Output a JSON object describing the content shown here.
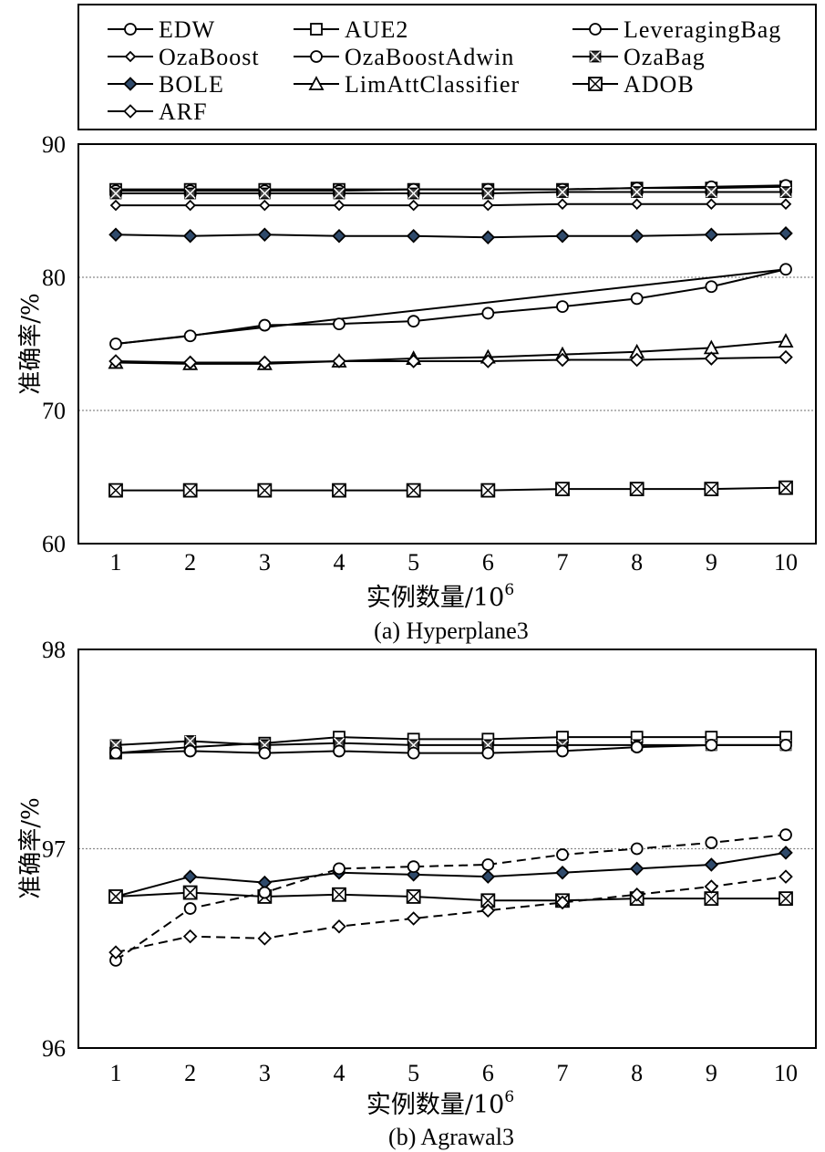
{
  "legend": {
    "entries": [
      {
        "name": "EDW",
        "marker": "circle",
        "fill": "#ffffff"
      },
      {
        "name": "AUE2",
        "marker": "square",
        "fill": "#ffffff"
      },
      {
        "name": "LeveragingBag",
        "marker": "circle",
        "fill": "#ffffff"
      },
      {
        "name": "OzaBoost",
        "marker": "diamond-small",
        "fill": "#ffffff"
      },
      {
        "name": "OzaBoostAdwin",
        "marker": "circle",
        "fill": "#ffffff"
      },
      {
        "name": "OzaBag",
        "marker": "square-x-filled",
        "fill": "#444444"
      },
      {
        "name": "BOLE",
        "marker": "diamond",
        "fill": "#2f4a6b"
      },
      {
        "name": "LimAttClassifier",
        "marker": "triangle",
        "fill": "#ffffff"
      },
      {
        "name": "ADOB",
        "marker": "square-x",
        "fill": "#ffffff"
      },
      {
        "name": "ARF",
        "marker": "diamond",
        "fill": "#ffffff"
      }
    ]
  },
  "chart_data": [
    {
      "type": "line",
      "caption": "(a) Hyperplane3",
      "xlabel": "实例数量/10",
      "xlabel_exponent": "6",
      "ylabel": "准确率/%",
      "x": [
        1,
        2,
        3,
        4,
        5,
        6,
        7,
        8,
        9,
        10
      ],
      "xtick_labels": [
        "1",
        "2",
        "3",
        "4",
        "5",
        "6",
        "7",
        "8",
        "9",
        "10"
      ],
      "ylim": [
        60,
        90
      ],
      "yticks": [
        60,
        70,
        80,
        90
      ],
      "ytick_labels": [
        "60",
        "70",
        "80",
        "90"
      ],
      "grid_y": [
        70,
        80
      ],
      "series": [
        {
          "name": "AUE2",
          "marker": "square",
          "fill": "#ffffff",
          "dashed": false,
          "values": [
            86.6,
            86.6,
            86.6,
            86.6,
            86.6,
            86.6,
            86.6,
            86.7,
            86.7,
            86.8
          ]
        },
        {
          "name": "EDW",
          "marker": "circle",
          "fill": "#ffffff",
          "dashed": false,
          "values": [
            86.5,
            86.5,
            86.5,
            86.5,
            86.6,
            86.6,
            86.6,
            86.7,
            86.8,
            86.9
          ]
        },
        {
          "name": "OzaBag",
          "marker": "square-x-filled",
          "fill": "#444444",
          "dashed": false,
          "values": [
            86.3,
            86.3,
            86.3,
            86.3,
            86.3,
            86.3,
            86.4,
            86.4,
            86.4,
            86.4
          ]
        },
        {
          "name": "OzaBoost",
          "marker": "diamond-small",
          "fill": "#ffffff",
          "dashed": false,
          "values": [
            85.4,
            85.4,
            85.4,
            85.4,
            85.4,
            85.4,
            85.5,
            85.5,
            85.5,
            85.5
          ]
        },
        {
          "name": "BOLE",
          "marker": "diamond",
          "fill": "#2f4a6b",
          "dashed": false,
          "values": [
            83.2,
            83.1,
            83.2,
            83.1,
            83.1,
            83.0,
            83.1,
            83.1,
            83.2,
            83.3
          ]
        },
        {
          "name": "LeveragingBag",
          "marker": "none",
          "fill": "#ffffff",
          "dashed": false,
          "values": [
            75.0,
            null,
            null,
            null,
            null,
            null,
            null,
            null,
            null,
            80.6
          ]
        },
        {
          "name": "OzaBoostAdwin",
          "marker": "circle",
          "fill": "#ffffff",
          "dashed": false,
          "values": [
            75.0,
            75.6,
            76.4,
            76.5,
            76.7,
            77.3,
            77.8,
            78.4,
            79.3,
            80.6
          ]
        },
        {
          "name": "LimAttClassifier",
          "marker": "triangle",
          "fill": "#ffffff",
          "dashed": false,
          "values": [
            73.6,
            73.5,
            73.5,
            73.7,
            73.9,
            74.0,
            74.2,
            74.4,
            74.7,
            75.2
          ]
        },
        {
          "name": "ARF",
          "marker": "diamond",
          "fill": "#ffffff",
          "dashed": false,
          "values": [
            73.7,
            73.6,
            73.6,
            73.7,
            73.7,
            73.7,
            73.8,
            73.8,
            73.9,
            74.0
          ]
        },
        {
          "name": "ADOB",
          "marker": "square-x",
          "fill": "#ffffff",
          "dashed": false,
          "values": [
            64.0,
            64.0,
            64.0,
            64.0,
            64.0,
            64.0,
            64.1,
            64.1,
            64.1,
            64.2
          ]
        }
      ]
    },
    {
      "type": "line",
      "caption": "(b) Agrawal3",
      "xlabel": "实例数量/10",
      "xlabel_exponent": "6",
      "ylabel": "准确率/%",
      "x": [
        1,
        2,
        3,
        4,
        5,
        6,
        7,
        8,
        9,
        10
      ],
      "xtick_labels": [
        "1",
        "2",
        "3",
        "4",
        "5",
        "6",
        "7",
        "8",
        "9",
        "10"
      ],
      "ylim": [
        96,
        98
      ],
      "yticks": [
        96,
        97,
        98
      ],
      "ytick_labels": [
        "96",
        "97",
        "98"
      ],
      "grid_y": [
        96,
        97
      ],
      "series": [
        {
          "name": "AUE2",
          "marker": "square",
          "fill": "#ffffff",
          "dashed": false,
          "values": [
            97.48,
            97.51,
            97.53,
            97.56,
            97.55,
            97.55,
            97.56,
            97.56,
            97.56,
            97.56
          ]
        },
        {
          "name": "OzaBag",
          "marker": "square-x-filled",
          "fill": "#444444",
          "dashed": false,
          "values": [
            97.52,
            97.54,
            97.52,
            97.53,
            97.52,
            97.52,
            97.52,
            97.52,
            97.52,
            97.52
          ]
        },
        {
          "name": "EDW",
          "marker": "circle",
          "fill": "#ffffff",
          "dashed": false,
          "values": [
            97.48,
            97.49,
            97.48,
            97.49,
            97.48,
            97.48,
            97.49,
            97.51,
            97.52,
            97.52
          ]
        },
        {
          "name": "BOLE",
          "marker": "diamond",
          "fill": "#2f4a6b",
          "dashed": false,
          "values": [
            96.76,
            96.86,
            96.83,
            96.88,
            96.87,
            96.86,
            96.88,
            96.9,
            96.92,
            96.98
          ]
        },
        {
          "name": "ADOB",
          "marker": "square-x",
          "fill": "#ffffff",
          "dashed": false,
          "values": [
            96.76,
            96.78,
            96.76,
            96.77,
            96.76,
            96.74,
            96.74,
            96.75,
            96.75,
            96.75
          ]
        },
        {
          "name": "OzaBoostAdwin",
          "marker": "circle",
          "fill": "#ffffff",
          "dashed": true,
          "values": [
            96.44,
            96.7,
            96.78,
            96.9,
            96.91,
            96.92,
            96.97,
            97.0,
            97.03,
            97.07
          ]
        },
        {
          "name": "ARF",
          "marker": "diamond",
          "fill": "#ffffff",
          "dashed": true,
          "values": [
            96.48,
            96.56,
            96.55,
            96.61,
            96.65,
            96.69,
            96.73,
            96.77,
            96.81,
            96.86
          ]
        }
      ]
    }
  ]
}
